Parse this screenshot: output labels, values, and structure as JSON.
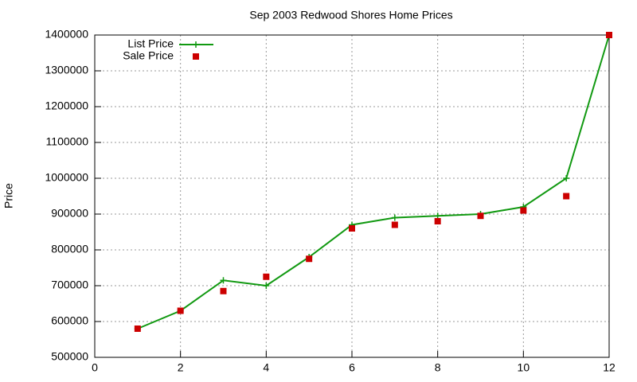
{
  "chart_data": {
    "type": "line",
    "title": "Sep 2003 Redwood Shores Home Prices",
    "y_label": "Price",
    "x": [
      1,
      2,
      3,
      4,
      5,
      6,
      7,
      8,
      9,
      10,
      11,
      12
    ],
    "series": [
      {
        "name": "List Price",
        "color": "#119911",
        "style": "linespoints",
        "values": [
          580000,
          630000,
          715000,
          700000,
          780000,
          870000,
          890000,
          895000,
          900000,
          920000,
          1000000,
          1400000
        ]
      },
      {
        "name": "Sale Price",
        "color": "#cc0000",
        "style": "points",
        "values": [
          580000,
          630000,
          685000,
          725000,
          775000,
          860000,
          870000,
          880000,
          895000,
          910000,
          950000,
          1400000
        ]
      }
    ],
    "xlim": [
      0,
      12
    ],
    "xticks": [
      0,
      2,
      4,
      6,
      8,
      10,
      12
    ],
    "ylim": [
      500000,
      1400000
    ],
    "yticks": [
      500000,
      600000,
      700000,
      800000,
      900000,
      1000000,
      1100000,
      1200000,
      1300000,
      1400000
    ],
    "grid": true,
    "legend": "top-left"
  }
}
